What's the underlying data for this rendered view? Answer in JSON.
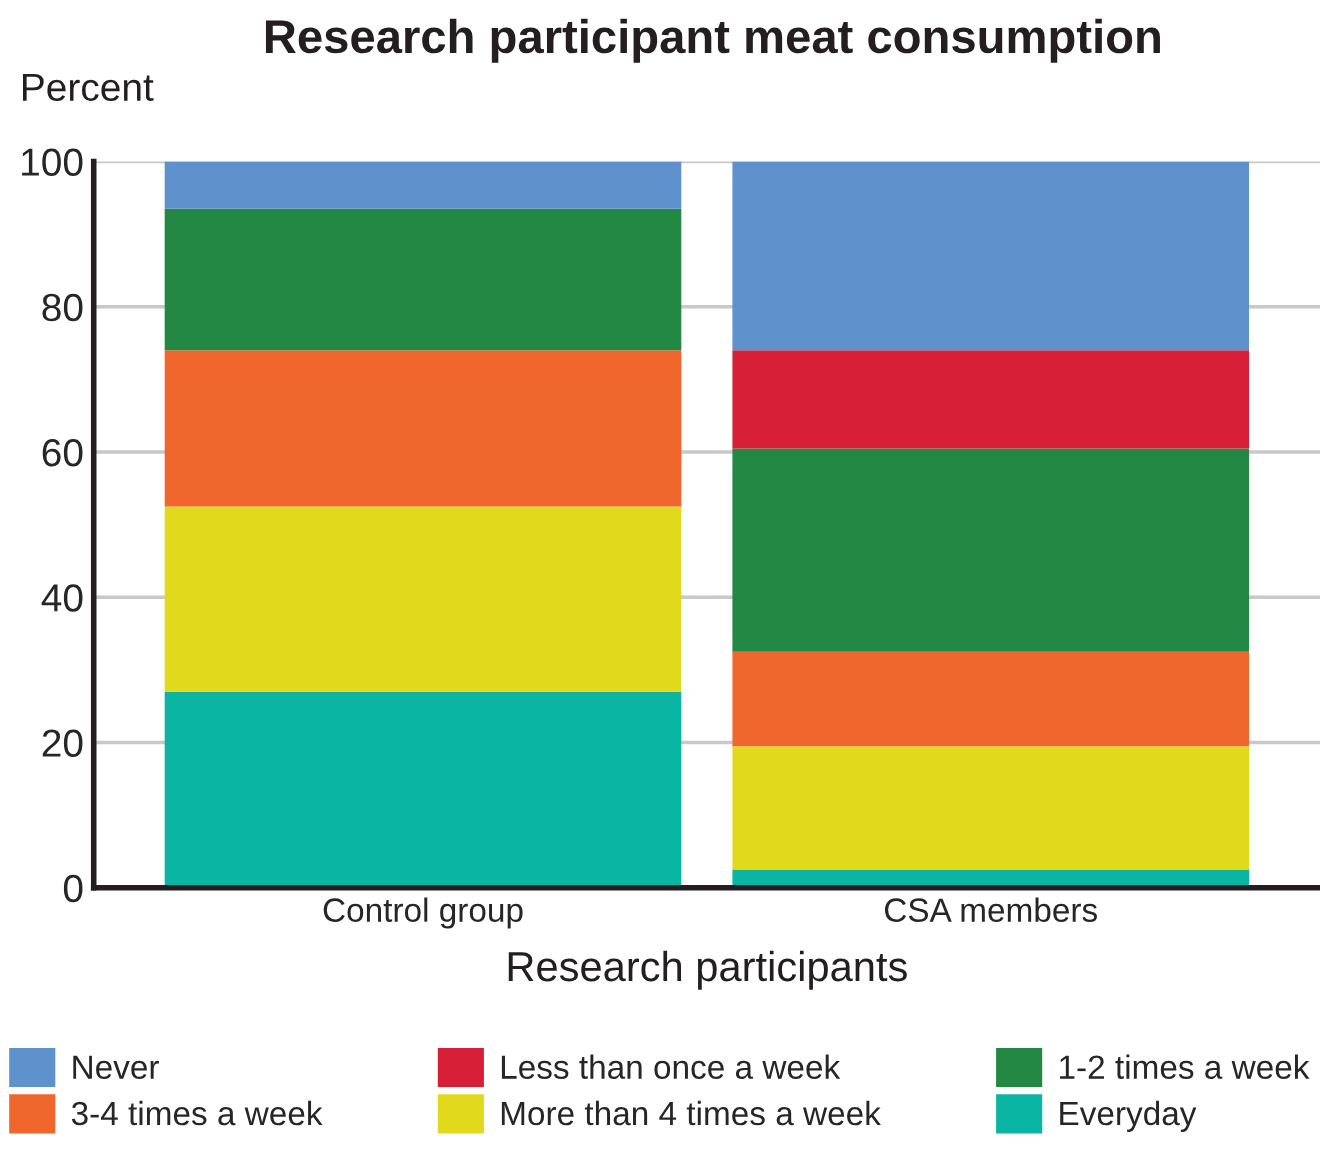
{
  "chart_data": {
    "type": "bar",
    "title": "Research participant meat consumption",
    "ylabel": "Percent",
    "xlabel": "Research participants",
    "categories": [
      "Control group",
      "CSA members"
    ],
    "stacked": true,
    "series": [
      {
        "name": "Everyday",
        "color": "#0bb5a3",
        "values": [
          27,
          2.5
        ]
      },
      {
        "name": "More than 4 times a week",
        "color": "#e1d91c",
        "values": [
          25.5,
          17
        ]
      },
      {
        "name": "3-4 times a week",
        "color": "#f0672d",
        "values": [
          21.5,
          13
        ]
      },
      {
        "name": "1-2 times a week",
        "color": "#238843",
        "values": [
          19.5,
          28
        ]
      },
      {
        "name": "Less than once a week",
        "color": "#d71f38",
        "values": [
          0,
          13.5
        ]
      },
      {
        "name": "Never",
        "color": "#5f92cc",
        "values": [
          6.5,
          26
        ]
      }
    ],
    "ylim": [
      0,
      100
    ],
    "yticks": [
      0,
      20,
      40,
      60,
      80,
      100
    ],
    "grid": "y",
    "legend": "bottom"
  }
}
